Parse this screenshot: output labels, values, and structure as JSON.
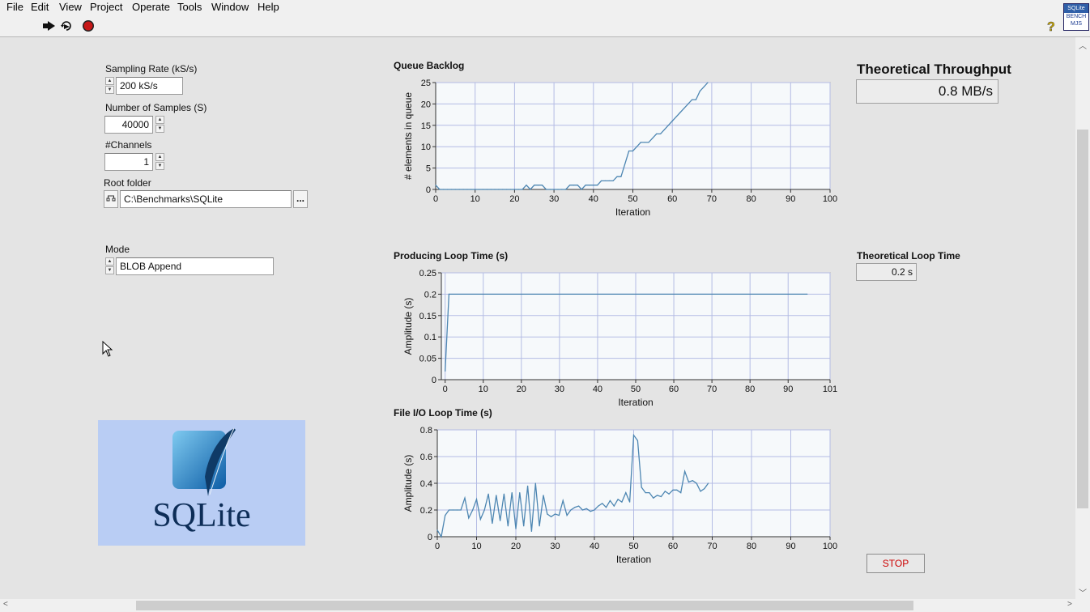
{
  "menu": [
    "File",
    "Edit",
    "View",
    "Project",
    "Operate",
    "Tools",
    "Window",
    "Help"
  ],
  "toolbar": {
    "icons": [
      "run-arrow-icon",
      "run-continuously-icon",
      "abort-icon",
      "help-icon"
    ],
    "vi_icon_text": [
      "SQLite",
      "BENCH",
      "MJS"
    ]
  },
  "controls": {
    "sampling_rate": {
      "label": "Sampling Rate (kS/s)",
      "value": "200 kS/s"
    },
    "num_samples": {
      "label": "Number of Samples (S)",
      "value": "40000"
    },
    "channels": {
      "label": "#Channels",
      "value": "1"
    },
    "root_folder": {
      "label": "Root folder",
      "value": "C:\\Benchmarks\\SQLite",
      "browse": "..."
    },
    "mode": {
      "label": "Mode",
      "value": "BLOB Append"
    },
    "stop": "STOP"
  },
  "indicators": {
    "theoretical_throughput": {
      "label": "Theoretical Throughput",
      "value": "0.8 MB/s"
    },
    "theoretical_loop_time": {
      "label": "Theoretical Loop Time",
      "value": "0.2 s"
    }
  },
  "logo": {
    "text": "SQLite"
  },
  "colors": {
    "plot_bg": "#f6f9fb",
    "grid": "#b4bce4",
    "trace": "#4d86b2",
    "stop_text": "#cc0000",
    "logo_bg": "#b9cdf4"
  },
  "chart_data": [
    {
      "type": "line",
      "title": "Queue Backlog",
      "xlabel": "Iteration",
      "ylabel": "# elements in queue",
      "xlim": [
        0,
        100
      ],
      "ylim": [
        0,
        25
      ],
      "xticks": [
        0,
        10,
        20,
        30,
        40,
        50,
        60,
        70,
        80,
        90,
        100
      ],
      "yticks": [
        0,
        5,
        10,
        15,
        20,
        25
      ],
      "grid": true,
      "x": [
        0,
        1,
        2,
        3,
        4,
        5,
        6,
        7,
        8,
        9,
        10,
        11,
        12,
        13,
        14,
        15,
        16,
        17,
        18,
        19,
        20,
        21,
        22,
        23,
        24,
        25,
        26,
        27,
        28,
        29,
        30,
        31,
        32,
        33,
        34,
        35,
        36,
        37,
        38,
        39,
        40,
        41,
        42,
        43,
        44,
        45,
        46,
        47,
        48,
        49,
        50,
        51,
        52,
        53,
        54,
        55,
        56,
        57,
        58,
        59,
        60,
        61,
        62,
        63,
        64,
        65,
        66,
        67,
        68,
        69
      ],
      "y": [
        1,
        0,
        0,
        0,
        0,
        0,
        0,
        0,
        0,
        0,
        0,
        0,
        0,
        0,
        0,
        0,
        0,
        0,
        0,
        0,
        0,
        0,
        0,
        1,
        0,
        1,
        1,
        1,
        0,
        0,
        0,
        0,
        0,
        0,
        1,
        1,
        1,
        0,
        1,
        1,
        1,
        1,
        2,
        2,
        2,
        2,
        3,
        3,
        6,
        9,
        9,
        10,
        11,
        11,
        11,
        12,
        13,
        13,
        14,
        15,
        16,
        17,
        18,
        19,
        20,
        21,
        21,
        23,
        24,
        25
      ]
    },
    {
      "type": "line",
      "title": "Producing Loop Time (s)",
      "xlabel": "Iteration",
      "ylabel": "Amplitude (s)",
      "xlim": [
        -1,
        101
      ],
      "ylim": [
        0,
        0.25
      ],
      "xticks": [
        0,
        10,
        20,
        30,
        40,
        50,
        60,
        70,
        80,
        90,
        101
      ],
      "yticks": [
        0,
        0.05,
        0.1,
        0.15,
        0.2,
        0.25
      ],
      "grid": true,
      "x": [
        0,
        1,
        95
      ],
      "y": [
        0.02,
        0.2,
        0.2
      ]
    },
    {
      "type": "line",
      "title": "File I/O Loop Time (s)",
      "xlabel": "Iteration",
      "ylabel": "Amplitude (s)",
      "xlim": [
        0,
        100
      ],
      "ylim": [
        0,
        0.8
      ],
      "xticks": [
        0,
        10,
        20,
        30,
        40,
        50,
        60,
        70,
        80,
        90,
        100
      ],
      "yticks": [
        0,
        0.2,
        0.4,
        0.6,
        0.8
      ],
      "grid": true,
      "x": [
        0,
        1,
        2,
        3,
        4,
        5,
        6,
        7,
        8,
        9,
        10,
        11,
        12,
        13,
        14,
        15,
        16,
        17,
        18,
        19,
        20,
        21,
        22,
        23,
        24,
        25,
        26,
        27,
        28,
        29,
        30,
        31,
        32,
        33,
        34,
        35,
        36,
        37,
        38,
        39,
        40,
        41,
        42,
        43,
        44,
        45,
        46,
        47,
        48,
        49,
        50,
        51,
        52,
        53,
        54,
        55,
        56,
        57,
        58,
        59,
        60,
        61,
        62,
        63,
        64,
        65,
        66,
        67,
        68,
        69
      ],
      "y": [
        0.05,
        0.0,
        0.16,
        0.2,
        0.2,
        0.2,
        0.2,
        0.29,
        0.14,
        0.2,
        0.28,
        0.13,
        0.2,
        0.32,
        0.1,
        0.31,
        0.12,
        0.32,
        0.08,
        0.33,
        0.06,
        0.33,
        0.08,
        0.38,
        0.04,
        0.4,
        0.08,
        0.31,
        0.17,
        0.15,
        0.17,
        0.16,
        0.27,
        0.16,
        0.2,
        0.22,
        0.23,
        0.2,
        0.21,
        0.19,
        0.2,
        0.23,
        0.25,
        0.22,
        0.27,
        0.23,
        0.28,
        0.26,
        0.33,
        0.26,
        0.76,
        0.72,
        0.37,
        0.33,
        0.33,
        0.29,
        0.31,
        0.3,
        0.34,
        0.32,
        0.35,
        0.35,
        0.33,
        0.49,
        0.41,
        0.42,
        0.4,
        0.34,
        0.36,
        0.4
      ]
    }
  ]
}
